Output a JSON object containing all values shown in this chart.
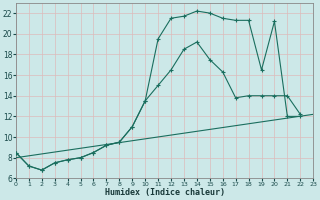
{
  "xlabel": "Humidex (Indice chaleur)",
  "bg_color": "#cce8e8",
  "grid_color": "#aacccc",
  "line_color": "#1a6e5e",
  "xlim": [
    0,
    23
  ],
  "ylim": [
    6,
    23
  ],
  "yticks": [
    6,
    8,
    10,
    12,
    14,
    16,
    18,
    20,
    22
  ],
  "xticks": [
    0,
    1,
    2,
    3,
    4,
    5,
    6,
    7,
    8,
    9,
    10,
    11,
    12,
    13,
    14,
    15,
    16,
    17,
    18,
    19,
    20,
    21,
    22,
    23
  ],
  "line1_x": [
    0,
    1,
    2,
    3,
    4,
    5,
    6,
    7,
    8,
    9,
    10,
    11,
    12,
    13,
    14,
    15,
    16,
    17,
    18,
    19,
    20,
    21,
    22
  ],
  "line1_y": [
    8.5,
    7.2,
    6.8,
    7.5,
    7.8,
    8.0,
    8.5,
    9.2,
    9.5,
    11.0,
    13.5,
    19.5,
    21.5,
    21.7,
    22.2,
    22.0,
    21.5,
    21.3,
    21.3,
    16.5,
    21.2,
    12.0,
    12.0
  ],
  "line2_x": [
    0,
    1,
    2,
    3,
    4,
    5,
    6,
    7,
    8,
    9,
    10,
    11,
    12,
    13,
    14,
    15,
    16,
    17,
    18,
    19,
    20,
    21,
    22
  ],
  "line2_y": [
    8.5,
    7.2,
    6.8,
    7.5,
    7.8,
    8.0,
    8.5,
    9.2,
    9.5,
    11.0,
    13.5,
    15.0,
    16.5,
    18.5,
    19.2,
    17.5,
    16.3,
    13.8,
    14.0,
    14.0,
    14.0,
    14.0,
    12.2
  ],
  "line3_x": [
    0,
    23
  ],
  "line3_y": [
    8.0,
    12.2
  ]
}
